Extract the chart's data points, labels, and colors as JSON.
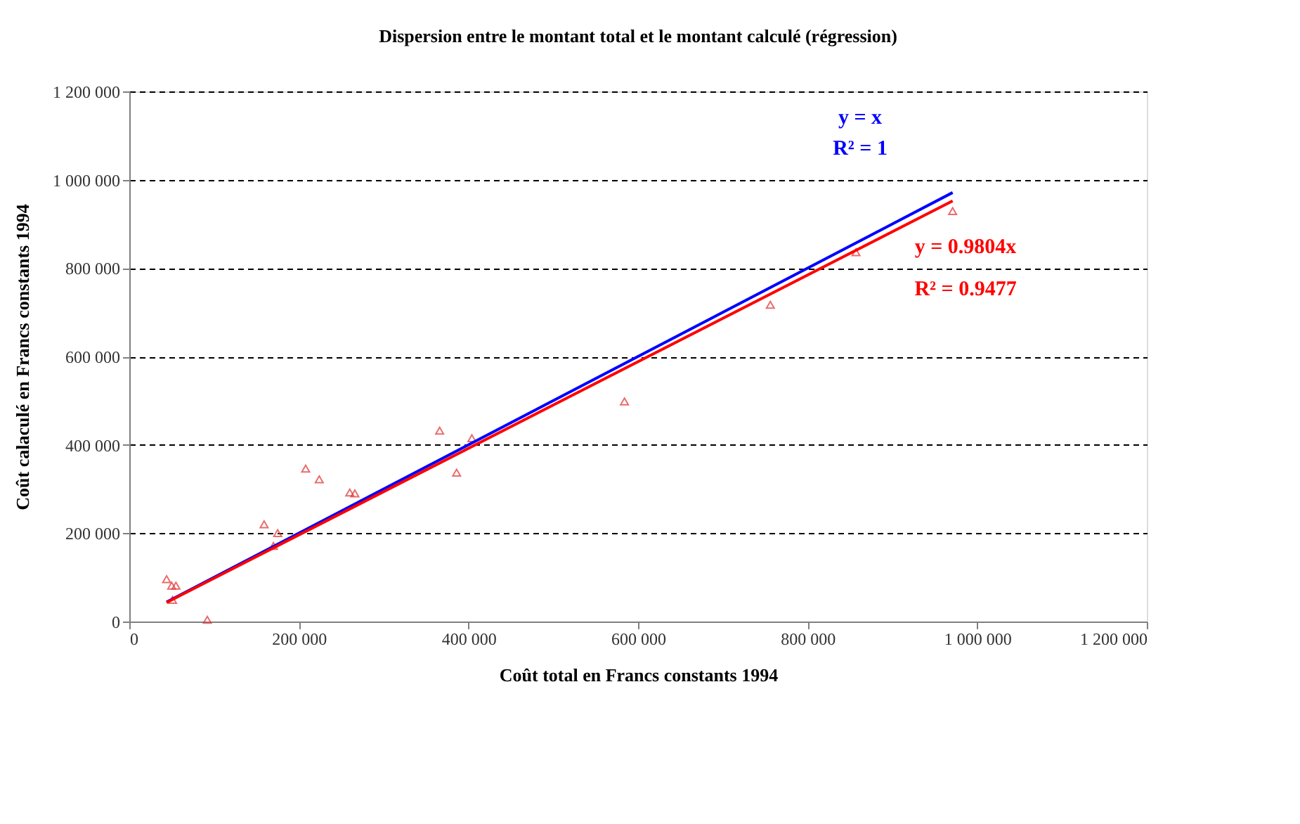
{
  "chart_data": {
    "type": "scatter",
    "title": "Dispersion entre le montant total et le montant calculé (régression)",
    "xlabel": "Coût total en Francs constants 1994",
    "ylabel": "Coût calaculé en Francs constants 1994",
    "series": [
      {
        "type": "scatter",
        "color": "#e03030",
        "marker": "triangle",
        "x": [
          44000,
          50000,
          55000,
          51000,
          92000,
          159000,
          175000,
          170000,
          208000,
          224000,
          260000,
          266000,
          366000,
          386000,
          404000,
          584000,
          756000,
          857000,
          971000
        ],
        "values": [
          96000,
          81000,
          81000,
          49000,
          4000,
          220000,
          200000,
          171000,
          346000,
          322000,
          292000,
          290000,
          432000,
          337000,
          415000,
          498000,
          717000,
          836000,
          929000
        ]
      },
      {
        "type": "line",
        "color": "#0000ff",
        "line_style": "solid",
        "x": [
          44000,
          971000
        ],
        "values": [
          44000,
          971000
        ]
      },
      {
        "type": "line",
        "color": "#ff0000",
        "line_style": "solid",
        "x": [
          44000,
          971000
        ],
        "values": [
          43000,
          952000
        ]
      }
    ],
    "annotations": [
      "y = x",
      "R² = 1",
      "y = 0.9804x",
      "R² = 0.9477"
    ],
    "xlim": [
      0,
      1200000
    ],
    "ylim": [
      0,
      1200000
    ],
    "xticks": [
      {
        "value": 0,
        "label": "0"
      },
      {
        "value": 200000,
        "label": "200 000"
      },
      {
        "value": 400000,
        "label": "400 000"
      },
      {
        "value": 600000,
        "label": "600 000"
      },
      {
        "value": 800000,
        "label": "800 000"
      },
      {
        "value": 1000000,
        "label": "1 000 000"
      },
      {
        "value": 1200000,
        "label": "1 200 000"
      }
    ],
    "yticks": [
      {
        "value": 0,
        "label": "0"
      },
      {
        "value": 200000,
        "label": "200 000"
      },
      {
        "value": 400000,
        "label": "400 000"
      },
      {
        "value": 600000,
        "label": "600 000"
      },
      {
        "value": 800000,
        "label": "800 000"
      },
      {
        "value": 1000000,
        "label": "1 000 000"
      },
      {
        "value": 1200000,
        "label": "1 200 000"
      }
    ],
    "grid": "y",
    "legend": false
  }
}
